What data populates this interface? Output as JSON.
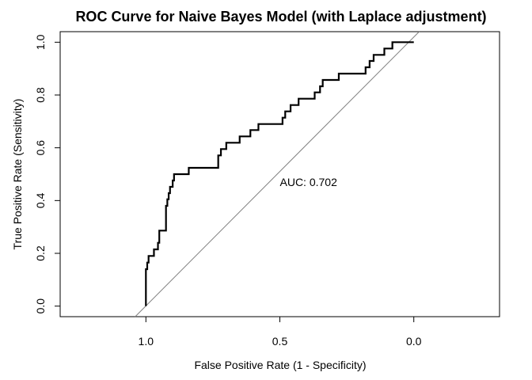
{
  "chart_data": {
    "type": "line",
    "title": "ROC Curve for Naive Bayes Model (with Laplace adjustment)",
    "xlabel": "False Positive Rate (1 - Specificity)",
    "ylabel": "True Positive Rate (Sensitivity)",
    "x_axis_reversed": true,
    "xlim": [
      1.32,
      -0.32
    ],
    "ylim": [
      -0.04,
      1.04
    ],
    "x_ticks": [
      1.0,
      0.5,
      0.0
    ],
    "x_tick_labels": [
      "1.0",
      "0.5",
      "0.0"
    ],
    "y_ticks": [
      0.0,
      0.2,
      0.4,
      0.6,
      0.8,
      1.0
    ],
    "y_tick_labels": [
      "0.0",
      "0.2",
      "0.4",
      "0.6",
      "0.8",
      "1.0"
    ],
    "grid": false,
    "legend": "none",
    "annotation": {
      "text": "AUC: 0.702",
      "x": 0.5,
      "y": 0.47
    },
    "reference_line": {
      "x": [
        1.04,
        -0.02
      ],
      "y": [
        -0.04,
        1.04
      ],
      "color": "#808080"
    },
    "series": [
      {
        "color": "#000000",
        "x": [
          1.0,
          1.0,
          0.995,
          0.995,
          0.99,
          0.99,
          0.97,
          0.97,
          0.955,
          0.955,
          0.95,
          0.95,
          0.925,
          0.925,
          0.92,
          0.92,
          0.915,
          0.915,
          0.91,
          0.91,
          0.9,
          0.9,
          0.895,
          0.895,
          0.89,
          0.89,
          0.84,
          0.84,
          0.73,
          0.73,
          0.72,
          0.72,
          0.7,
          0.7,
          0.65,
          0.65,
          0.61,
          0.61,
          0.58,
          0.58,
          0.49,
          0.49,
          0.48,
          0.48,
          0.46,
          0.46,
          0.45,
          0.45,
          0.43,
          0.43,
          0.37,
          0.37,
          0.35,
          0.35,
          0.34,
          0.34,
          0.28,
          0.28,
          0.18,
          0.18,
          0.165,
          0.165,
          0.15,
          0.15,
          0.11,
          0.11,
          0.08,
          0.08,
          0.05,
          0.05,
          0.0
        ],
        "y": [
          0.0,
          0.14,
          0.14,
          0.165,
          0.165,
          0.19,
          0.19,
          0.215,
          0.215,
          0.24,
          0.24,
          0.286,
          0.286,
          0.38,
          0.38,
          0.405,
          0.405,
          0.428,
          0.428,
          0.452,
          0.452,
          0.476,
          0.476,
          0.5,
          0.5,
          0.5,
          0.5,
          0.524,
          0.524,
          0.571,
          0.571,
          0.595,
          0.595,
          0.619,
          0.619,
          0.643,
          0.643,
          0.667,
          0.667,
          0.69,
          0.69,
          0.714,
          0.714,
          0.738,
          0.738,
          0.762,
          0.762,
          0.762,
          0.762,
          0.786,
          0.786,
          0.81,
          0.81,
          0.833,
          0.833,
          0.857,
          0.857,
          0.881,
          0.881,
          0.905,
          0.905,
          0.929,
          0.929,
          0.952,
          0.952,
          0.976,
          0.976,
          1.0,
          1.0,
          1.0,
          1.0
        ]
      }
    ]
  }
}
